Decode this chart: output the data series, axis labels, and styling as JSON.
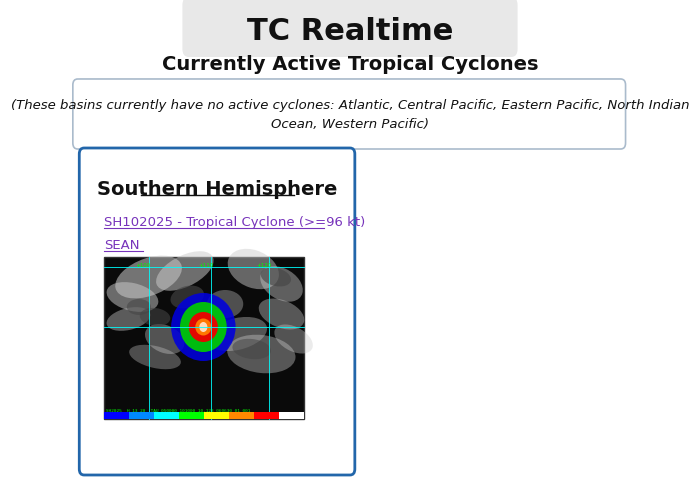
{
  "title": "TC Realtime",
  "subtitle": "Currently Active Tropical Cyclones",
  "inactive_text": "(These basins currently have no active cyclones: Atlantic, Central Pacific, Eastern Pacific, North Indian\nOcean, Western Pacific)",
  "section_title": "Southern Hemisphere",
  "link_line1": "SH102025 - Tropical Cyclone (>=96 kt)",
  "link_line2": "SEAN",
  "page_bg": "#ffffff",
  "title_bg": "#e8e8e8",
  "section_border_color": "#2266aa",
  "link_color": "#7733bb",
  "inactive_border": "#aabbcc",
  "divider_color": "#aaaaaa"
}
